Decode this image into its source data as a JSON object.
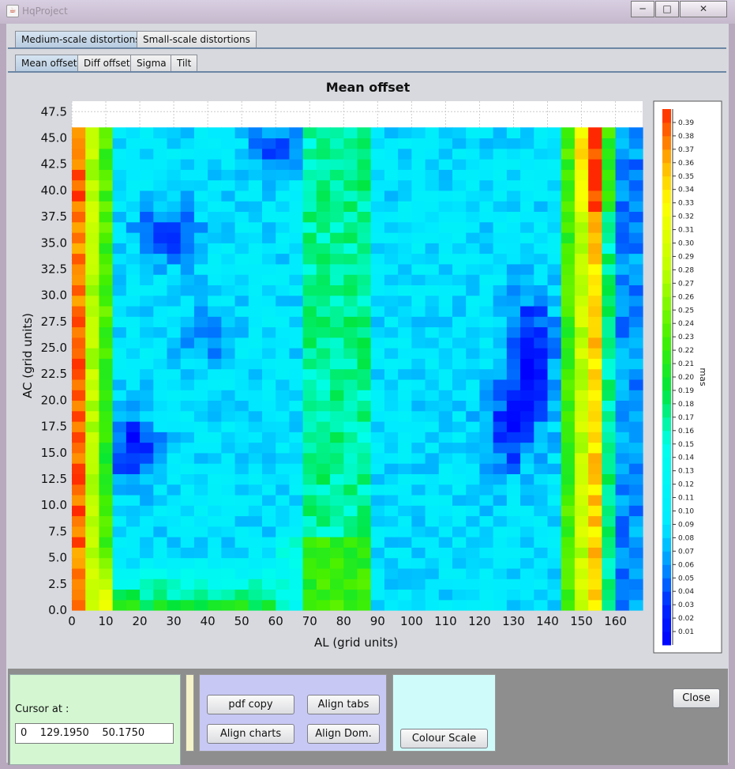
{
  "window": {
    "title": "HqProject"
  },
  "tabs_top": [
    "Medium-scale distortions",
    "Small-scale distortions"
  ],
  "tabs_sub": [
    "Mean offset",
    "Diff offset",
    "Sigma",
    "Tilt"
  ],
  "chart_data": {
    "type": "heatmap",
    "title": "Mean offset",
    "xlabel": "AL (grid units)",
    "ylabel": "AC (grid units)",
    "xlim": [
      0,
      168
    ],
    "ylim": [
      0,
      48.5
    ],
    "x_ticks": [
      "0",
      "10",
      "20",
      "30",
      "40",
      "50",
      "60",
      "70",
      "80",
      "90",
      "100",
      "110",
      "120",
      "130",
      "140",
      "150",
      "160"
    ],
    "y_ticks": [
      "0.0",
      "2.5",
      "5.0",
      "7.5",
      "10.0",
      "12.5",
      "15.0",
      "17.5",
      "20.0",
      "22.5",
      "25.0",
      "27.5",
      "30.0",
      "32.5",
      "35.0",
      "37.5",
      "40.0",
      "42.5",
      "45.0",
      "47.5"
    ],
    "grid": {
      "x_cells": 42,
      "y_cells": 46,
      "x_max": 168,
      "y_max": 46
    },
    "value_range": [
      0.0,
      0.4
    ],
    "colorbar": {
      "label": "mas",
      "ticks": [
        "0.01",
        "0.02",
        "0.03",
        "0.04",
        "0.05",
        "0.06",
        "0.07",
        "0.08",
        "0.09",
        "0.10",
        "0.11",
        "0.12",
        "0.13",
        "0.14",
        "0.15",
        "0.16",
        "0.17",
        "0.18",
        "0.19",
        "0.20",
        "0.21",
        "0.22",
        "0.23",
        "0.24",
        "0.25",
        "0.26",
        "0.27",
        "0.28",
        "0.29",
        "0.30",
        "0.31",
        "0.32",
        "0.33",
        "0.34",
        "0.35",
        "0.36",
        "0.37",
        "0.38",
        "0.39"
      ]
    }
  },
  "cursor": {
    "label": "Cursor at :",
    "value": "0    129.1950    50.1750"
  },
  "buttons": {
    "pdf_copy": "pdf copy",
    "align_tabs": "Align tabs",
    "align_charts": "Align charts",
    "align_dom": "Align Dom.",
    "colour_scale": "Colour Scale",
    "close": "Close"
  },
  "colors": {
    "cursor_panel": "#d4f7d2",
    "button_panel": "#c8c8f5",
    "scale_panel": "#cffcfb",
    "tab_sep": "#6c86a4"
  }
}
